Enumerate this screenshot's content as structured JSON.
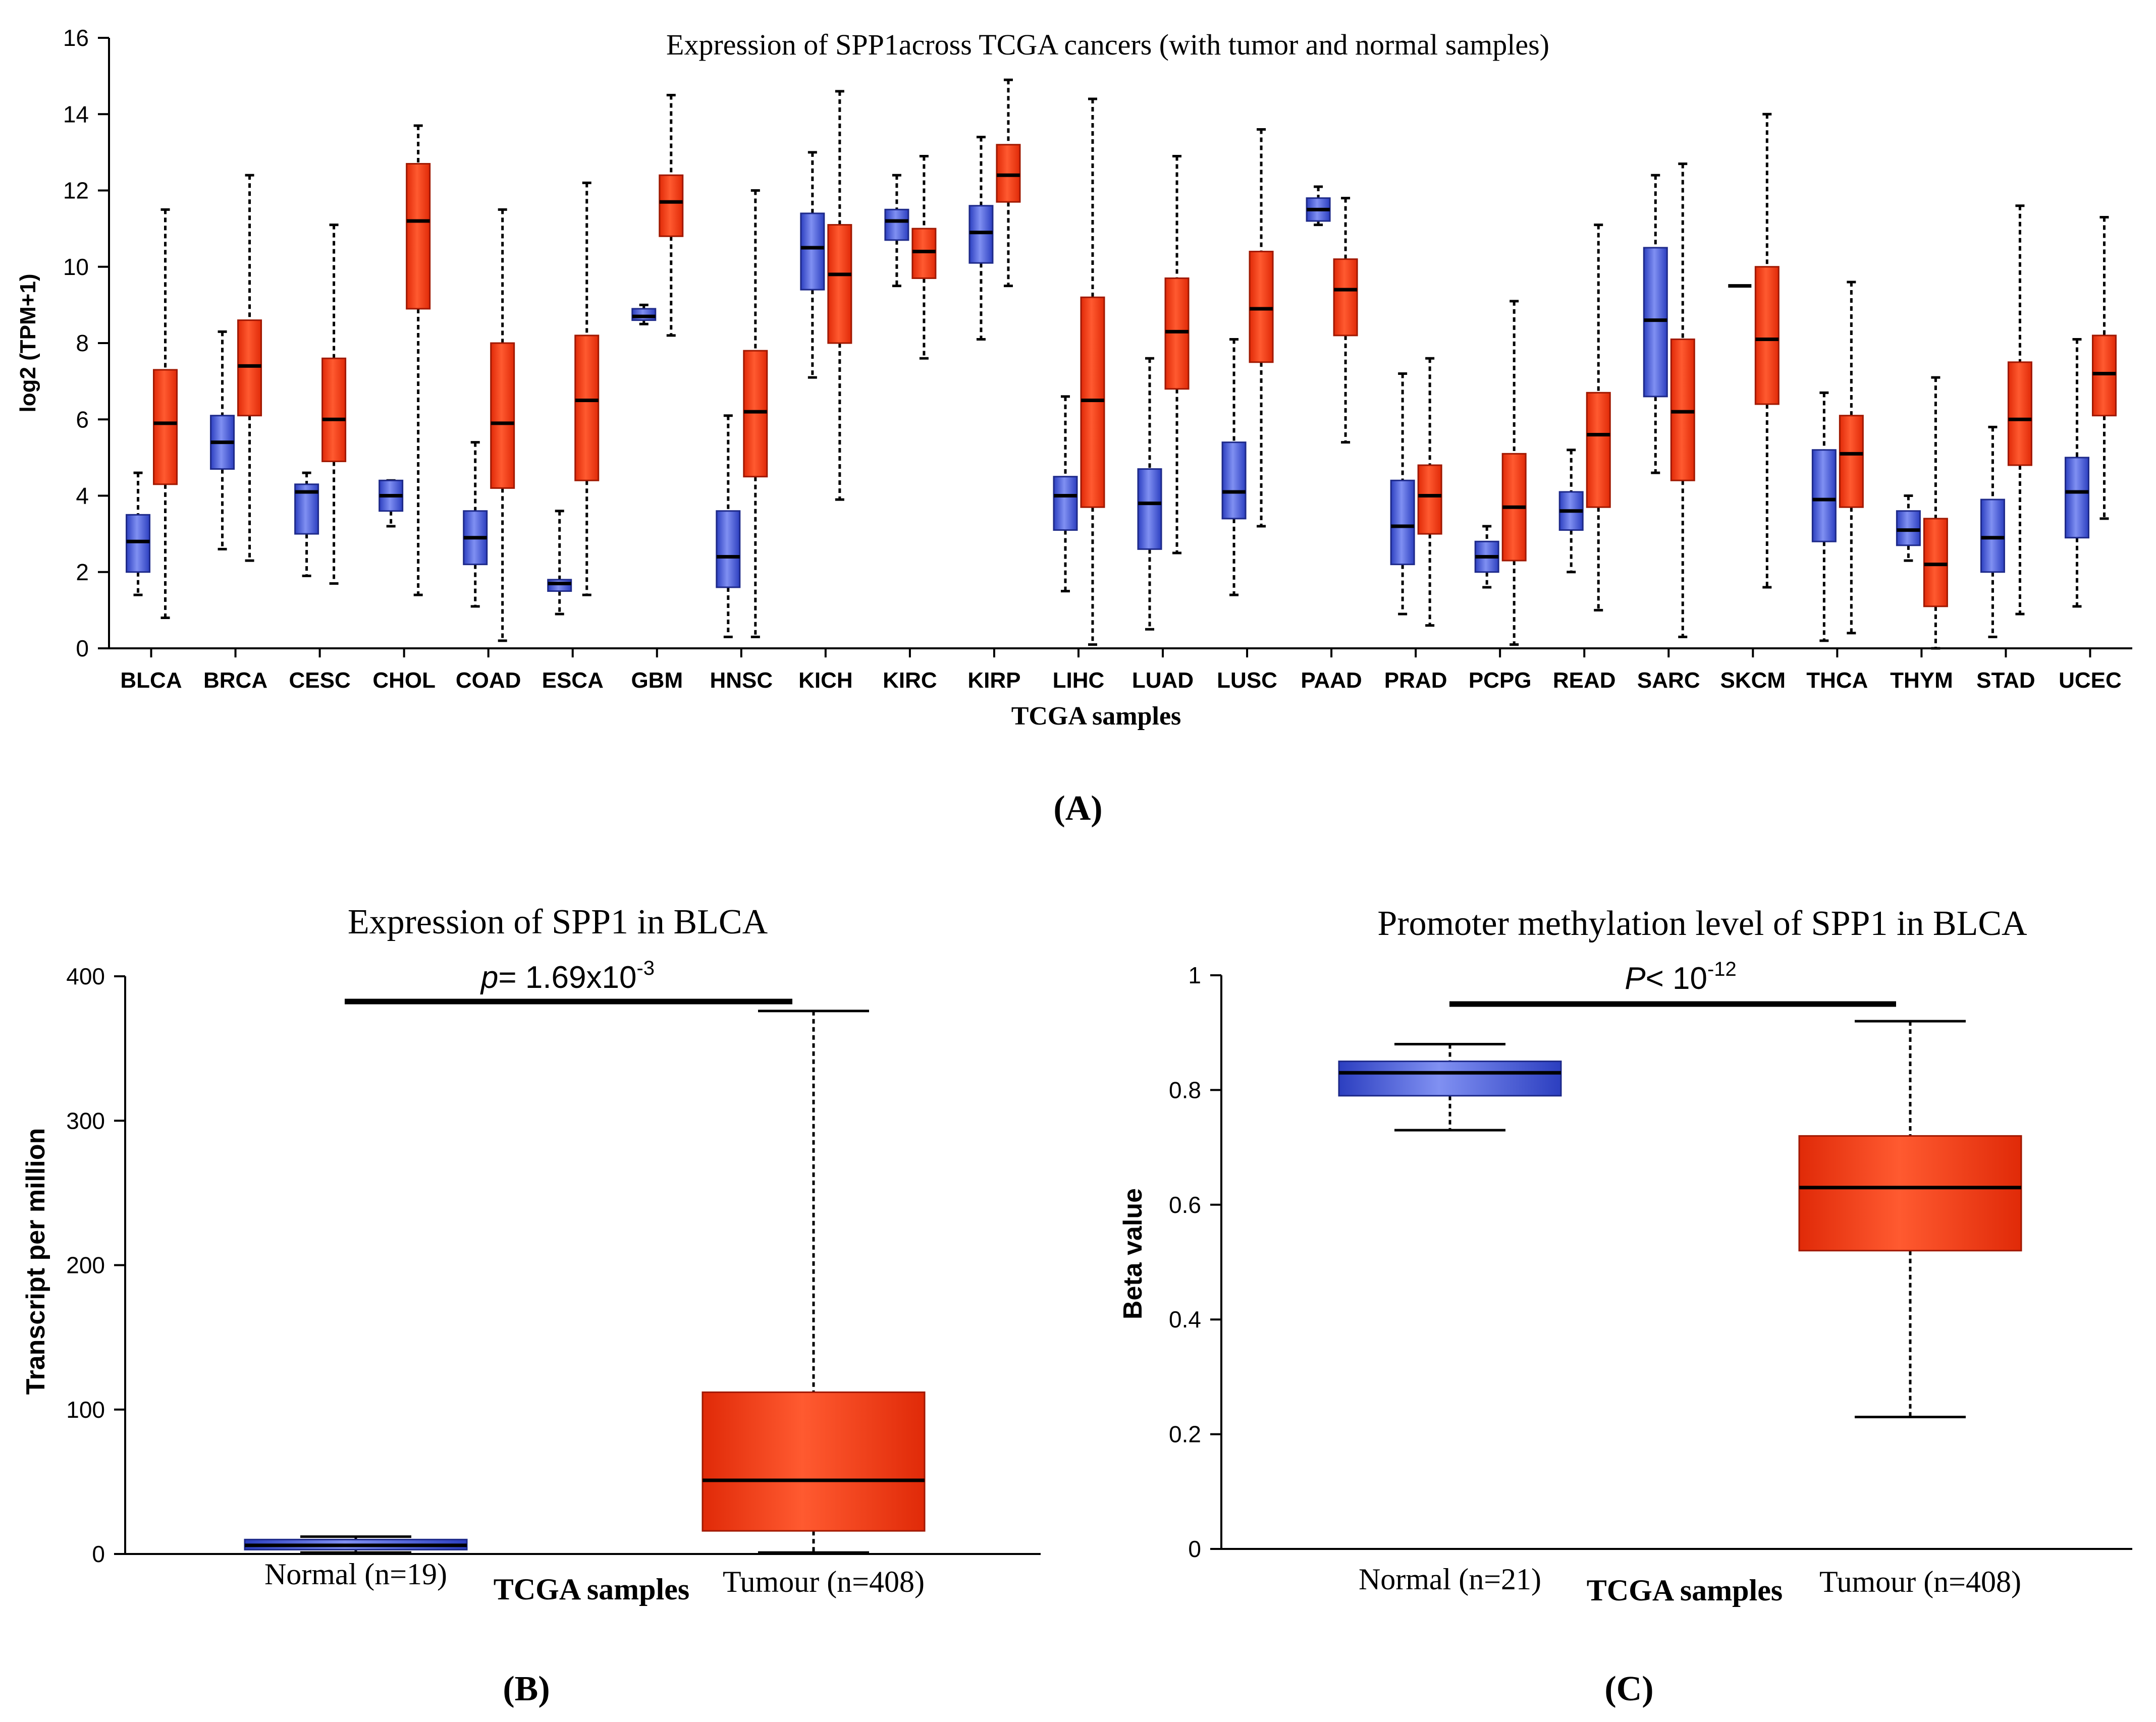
{
  "colors": {
    "normal_box": "#3a52d8",
    "normal_box_light": "#8090f2",
    "tumor_box": "#f03010",
    "tumor_box_light": "#ff5a30",
    "axis": "#000000",
    "median": "#000000"
  },
  "panel_labels": [
    "(A)",
    "(B)",
    "(C)"
  ],
  "chart_data": [
    {
      "id": "A",
      "type": "box",
      "title": "Expression of SPP1across TCGA cancers (with tumor and normal samples)",
      "xlabel": "TCGA samples",
      "ylabel": "log2 (TPM+1)",
      "ylim": [
        0,
        16
      ],
      "yticks": [
        0,
        2,
        4,
        6,
        8,
        10,
        12,
        14,
        16
      ],
      "categories": [
        "BLCA",
        "BRCA",
        "CESC",
        "CHOL",
        "COAD",
        "ESCA",
        "GBM",
        "HNSC",
        "KICH",
        "KIRC",
        "KIRP",
        "LIHC",
        "LUAD",
        "LUSC",
        "PAAD",
        "PRAD",
        "PCPG",
        "READ",
        "SARC",
        "SKCM",
        "THCA",
        "THYM",
        "STAD",
        "UCEC"
      ],
      "series": [
        {
          "name": "Normal",
          "boxes": [
            {
              "min": 1.4,
              "q1": 2.0,
              "median": 2.8,
              "q3": 3.5,
              "max": 4.6
            },
            {
              "min": 2.6,
              "q1": 4.7,
              "median": 5.4,
              "q3": 6.1,
              "max": 8.3
            },
            {
              "min": 1.9,
              "q1": 3.0,
              "median": 4.1,
              "q3": 4.3,
              "max": 4.6
            },
            {
              "min": 3.2,
              "q1": 3.6,
              "median": 4.0,
              "q3": 4.4,
              "max": 4.4
            },
            {
              "min": 1.1,
              "q1": 2.2,
              "median": 2.9,
              "q3": 3.6,
              "max": 5.4
            },
            {
              "min": 0.9,
              "q1": 1.5,
              "median": 1.7,
              "q3": 1.8,
              "max": 3.6
            },
            {
              "min": 8.5,
              "q1": 8.6,
              "median": 8.7,
              "q3": 8.9,
              "max": 9.0
            },
            {
              "min": 0.3,
              "q1": 1.6,
              "median": 2.4,
              "q3": 3.6,
              "max": 6.1
            },
            {
              "min": 7.1,
              "q1": 9.4,
              "median": 10.5,
              "q3": 11.4,
              "max": 13.0
            },
            {
              "min": 9.5,
              "q1": 10.7,
              "median": 11.2,
              "q3": 11.5,
              "max": 12.4
            },
            {
              "min": 8.1,
              "q1": 10.1,
              "median": 10.9,
              "q3": 11.6,
              "max": 13.4
            },
            {
              "min": 1.5,
              "q1": 3.1,
              "median": 4.0,
              "q3": 4.5,
              "max": 6.6
            },
            {
              "min": 0.5,
              "q1": 2.6,
              "median": 3.8,
              "q3": 4.7,
              "max": 7.6
            },
            {
              "min": 1.4,
              "q1": 3.4,
              "median": 4.1,
              "q3": 5.4,
              "max": 8.1
            },
            {
              "min": 11.1,
              "q1": 11.2,
              "median": 11.5,
              "q3": 11.8,
              "max": 12.1
            },
            {
              "min": 0.9,
              "q1": 2.2,
              "median": 3.2,
              "q3": 4.4,
              "max": 7.2
            },
            {
              "min": 1.6,
              "q1": 2.0,
              "median": 2.4,
              "q3": 2.8,
              "max": 3.2
            },
            {
              "min": 2.0,
              "q1": 3.1,
              "median": 3.6,
              "q3": 4.1,
              "max": 5.2
            },
            {
              "min": 4.6,
              "q1": 6.6,
              "median": 8.6,
              "q3": 10.5,
              "max": 12.4
            },
            {
              "min": 9.5,
              "q1": 9.5,
              "median": 9.5,
              "q3": 9.5,
              "max": 9.5
            },
            {
              "min": 0.2,
              "q1": 2.8,
              "median": 3.9,
              "q3": 5.2,
              "max": 6.7
            },
            {
              "min": 2.3,
              "q1": 2.7,
              "median": 3.1,
              "q3": 3.6,
              "max": 4.0
            },
            {
              "min": 0.3,
              "q1": 2.0,
              "median": 2.9,
              "q3": 3.9,
              "max": 5.8
            },
            {
              "min": 1.1,
              "q1": 2.9,
              "median": 4.1,
              "q3": 5.0,
              "max": 8.1
            }
          ]
        },
        {
          "name": "Tumor",
          "boxes": [
            {
              "min": 0.8,
              "q1": 4.3,
              "median": 5.9,
              "q3": 7.3,
              "max": 11.5
            },
            {
              "min": 2.3,
              "q1": 6.1,
              "median": 7.4,
              "q3": 8.6,
              "max": 12.4
            },
            {
              "min": 1.7,
              "q1": 4.9,
              "median": 6.0,
              "q3": 7.6,
              "max": 11.1
            },
            {
              "min": 1.4,
              "q1": 8.9,
              "median": 11.2,
              "q3": 12.7,
              "max": 13.7
            },
            {
              "min": 0.2,
              "q1": 4.2,
              "median": 5.9,
              "q3": 8.0,
              "max": 11.5
            },
            {
              "min": 1.4,
              "q1": 4.4,
              "median": 6.5,
              "q3": 8.2,
              "max": 12.2
            },
            {
              "min": 8.2,
              "q1": 10.8,
              "median": 11.7,
              "q3": 12.4,
              "max": 14.5
            },
            {
              "min": 0.3,
              "q1": 4.5,
              "median": 6.2,
              "q3": 7.8,
              "max": 12.0
            },
            {
              "min": 3.9,
              "q1": 8.0,
              "median": 9.8,
              "q3": 11.1,
              "max": 14.6
            },
            {
              "min": 7.6,
              "q1": 9.7,
              "median": 10.4,
              "q3": 11.0,
              "max": 12.9
            },
            {
              "min": 9.5,
              "q1": 11.7,
              "median": 12.4,
              "q3": 13.2,
              "max": 14.9
            },
            {
              "min": 0.1,
              "q1": 3.7,
              "median": 6.5,
              "q3": 9.2,
              "max": 14.4
            },
            {
              "min": 2.5,
              "q1": 6.8,
              "median": 8.3,
              "q3": 9.7,
              "max": 12.9
            },
            {
              "min": 3.2,
              "q1": 7.5,
              "median": 8.9,
              "q3": 10.4,
              "max": 13.6
            },
            {
              "min": 5.4,
              "q1": 8.2,
              "median": 9.4,
              "q3": 10.2,
              "max": 11.8
            },
            {
              "min": 0.6,
              "q1": 3.0,
              "median": 4.0,
              "q3": 4.8,
              "max": 7.6
            },
            {
              "min": 0.1,
              "q1": 2.3,
              "median": 3.7,
              "q3": 5.1,
              "max": 9.1
            },
            {
              "min": 1.0,
              "q1": 3.7,
              "median": 5.6,
              "q3": 6.7,
              "max": 11.1
            },
            {
              "min": 0.3,
              "q1": 4.4,
              "median": 6.2,
              "q3": 8.1,
              "max": 12.7
            },
            {
              "min": 1.6,
              "q1": 6.4,
              "median": 8.1,
              "q3": 10.0,
              "max": 14.0
            },
            {
              "min": 0.4,
              "q1": 3.7,
              "median": 5.1,
              "q3": 6.1,
              "max": 9.6
            },
            {
              "min": 0.0,
              "q1": 1.1,
              "median": 2.2,
              "q3": 3.4,
              "max": 7.1
            },
            {
              "min": 0.9,
              "q1": 4.8,
              "median": 6.0,
              "q3": 7.5,
              "max": 11.6
            },
            {
              "min": 3.4,
              "q1": 6.1,
              "median": 7.2,
              "q3": 8.2,
              "max": 11.3
            }
          ]
        }
      ]
    },
    {
      "id": "B",
      "type": "box",
      "title": "Expression of SPP1 in BLCA",
      "xlabel": "TCGA samples",
      "ylabel": "Transcript per million",
      "ylim": [
        0,
        400
      ],
      "yticks": [
        0,
        100,
        200,
        300,
        400
      ],
      "annotation": {
        "prefix": "p",
        "text": "= 1.69x10",
        "exponent": "-3"
      },
      "categories": [
        "Normal (n=19)",
        "Tumour  (n=408)"
      ],
      "boxes": [
        {
          "name": "Normal",
          "min": 1,
          "q1": 3,
          "median": 6,
          "q3": 10,
          "max": 12
        },
        {
          "name": "Tumour",
          "min": 1,
          "q1": 16,
          "median": 51,
          "q3": 112,
          "max": 376
        }
      ]
    },
    {
      "id": "C",
      "type": "box",
      "title": "Promoter methylation  level of SPP1 in BLCA",
      "xlabel": "TCGA samples",
      "ylabel": "Beta value",
      "ylim": [
        0,
        1
      ],
      "yticks": [
        0,
        0.2,
        0.4,
        0.6,
        0.8,
        1
      ],
      "ytick_labels": [
        "0",
        "0.2",
        "0.4",
        "0.6",
        "0.8",
        "1"
      ],
      "annotation": {
        "prefix": "P",
        "text": "< 10",
        "exponent": "-12"
      },
      "categories": [
        "Normal (n=21)",
        "Tumour  (n=408)"
      ],
      "boxes": [
        {
          "name": "Normal",
          "min": 0.73,
          "q1": 0.79,
          "median": 0.83,
          "q3": 0.85,
          "max": 0.88
        },
        {
          "name": "Tumour",
          "min": 0.23,
          "q1": 0.52,
          "median": 0.63,
          "q3": 0.72,
          "max": 0.92
        }
      ]
    }
  ]
}
